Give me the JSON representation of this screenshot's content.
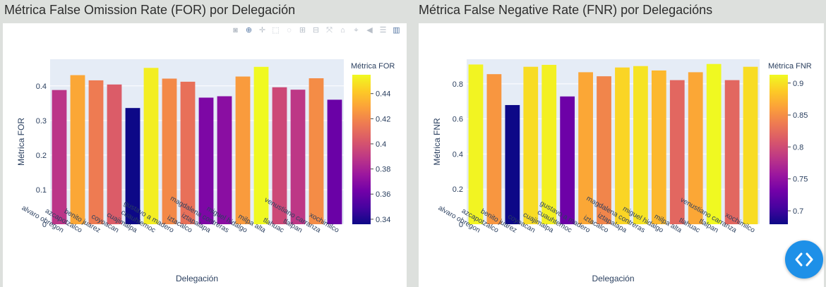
{
  "panels": [
    {
      "heading": "Métrica False Omission Rate (FOR) por Delegación"
    },
    {
      "heading": "Métrica False Negative Rate (FNR) por Delegacións"
    }
  ],
  "modebar_icons": [
    "camera-icon",
    "zoom-icon",
    "pan-icon",
    "box-select-icon",
    "lasso-icon",
    "zoom-in-icon",
    "zoom-out-icon",
    "autoscale-icon",
    "reset-axes-icon",
    "spike-lines-icon",
    "hover-closest-icon",
    "hover-compare-icon",
    "plotly-logo-icon"
  ],
  "nav_button_icon": "code-brackets-icon",
  "chart_data": [
    {
      "type": "bar",
      "title": "",
      "xlabel": "Delegación",
      "ylabel": "Métrica FOR",
      "categories": [
        "alvaro obregon",
        "azcapotzalco",
        "benito juarez",
        "coyoacan",
        "cuajimalpa",
        "cuauhtemoc",
        "gustavo a madero",
        "iztacalco",
        "iztapalapa",
        "magdalena contreras",
        "miguel hidalgo",
        "milpa alta",
        "tlahuac",
        "tlalpan",
        "venustiano carranza",
        "xochimilco"
      ],
      "values": [
        0.388,
        0.431,
        0.416,
        0.404,
        0.336,
        0.452,
        0.421,
        0.412,
        0.366,
        0.37,
        0.427,
        0.455,
        0.396,
        0.389,
        0.422,
        0.36
      ],
      "ylim": [
        0,
        0.477
      ],
      "yticks": [
        "0",
        "0.1",
        "0.2",
        "0.3",
        "0.4"
      ],
      "colorbar": {
        "title": "Métrica FOR",
        "min": 0.336,
        "max": 0.455,
        "ticks": [
          0.34,
          0.36,
          0.38,
          0.4,
          0.42,
          0.44
        ],
        "tick_labels": [
          "0.34",
          "0.36",
          "0.38",
          "0.4",
          "0.42",
          "0.44"
        ]
      },
      "grid": true
    },
    {
      "type": "bar",
      "title": "",
      "xlabel": "Delegación",
      "ylabel": "Métrica FNR",
      "categories": [
        "alvaro obregon",
        "azcapotzalco",
        "benito juarez",
        "coyoacan",
        "cuajimalpa",
        "cuauhtemoc",
        "gustavo a madero",
        "iztacalco",
        "iztapalapa",
        "magdalena contreras",
        "miguel hidalgo",
        "milpa alta",
        "tlahuac",
        "tlalpan",
        "venustiano carranza",
        "xochimilco"
      ],
      "values": [
        0.91,
        0.855,
        0.679,
        0.897,
        0.908,
        0.728,
        0.866,
        0.843,
        0.893,
        0.901,
        0.876,
        0.821,
        0.866,
        0.913,
        0.821,
        0.897
      ],
      "ylim": [
        0,
        0.94
      ],
      "yticks": [
        "0",
        "0.2",
        "0.4",
        "0.6",
        "0.8"
      ],
      "colorbar": {
        "title": "Métrica FNR",
        "min": 0.679,
        "max": 0.913,
        "ticks": [
          0.7,
          0.75,
          0.8,
          0.85,
          0.9
        ],
        "tick_labels": [
          "0.7",
          "0.75",
          "0.8",
          "0.85",
          "0.9"
        ]
      },
      "grid": true
    }
  ]
}
